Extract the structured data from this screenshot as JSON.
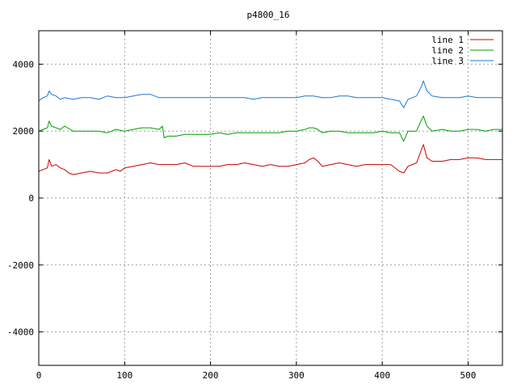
{
  "chart_data": {
    "type": "line",
    "title": "p4800_16",
    "xlabel": "",
    "ylabel": "",
    "xlim": [
      0,
      540
    ],
    "ylim": [
      -5000,
      5000
    ],
    "x_ticks": [
      0,
      100,
      200,
      300,
      400,
      500
    ],
    "y_ticks": [
      -4000,
      -2000,
      0,
      2000,
      4000
    ],
    "grid": true,
    "legend_position": "top-right",
    "series": [
      {
        "name": "line 1",
        "color": "#cc0000",
        "x": [
          0,
          5,
          10,
          12,
          15,
          20,
          25,
          30,
          35,
          40,
          50,
          60,
          70,
          80,
          90,
          95,
          100,
          110,
          120,
          130,
          140,
          150,
          160,
          170,
          180,
          190,
          200,
          210,
          220,
          230,
          240,
          250,
          260,
          270,
          280,
          290,
          300,
          310,
          315,
          320,
          325,
          330,
          340,
          350,
          360,
          370,
          380,
          390,
          400,
          410,
          420,
          425,
          430,
          440,
          445,
          448,
          452,
          458,
          470,
          480,
          490,
          500,
          510,
          520,
          530,
          540
        ],
        "y": [
          800,
          850,
          900,
          1150,
          950,
          1000,
          900,
          850,
          750,
          700,
          750,
          800,
          750,
          750,
          850,
          800,
          900,
          950,
          1000,
          1050,
          1000,
          1000,
          1000,
          1050,
          950,
          950,
          950,
          950,
          1000,
          1000,
          1050,
          1000,
          950,
          1000,
          950,
          950,
          1000,
          1050,
          1150,
          1200,
          1100,
          950,
          1000,
          1050,
          1000,
          950,
          1000,
          1000,
          1000,
          1000,
          800,
          750,
          950,
          1050,
          1400,
          1600,
          1200,
          1100,
          1100,
          1150,
          1150,
          1200,
          1200,
          1150,
          1150,
          1150
        ]
      },
      {
        "name": "line 2",
        "color": "#00a000",
        "x": [
          0,
          5,
          10,
          12,
          15,
          20,
          25,
          30,
          40,
          50,
          60,
          70,
          80,
          90,
          100,
          110,
          120,
          130,
          140,
          144,
          146,
          150,
          160,
          170,
          180,
          190,
          200,
          210,
          220,
          230,
          240,
          250,
          260,
          270,
          280,
          290,
          300,
          310,
          315,
          320,
          325,
          330,
          340,
          350,
          360,
          370,
          380,
          390,
          400,
          410,
          420,
          425,
          430,
          440,
          445,
          448,
          452,
          458,
          470,
          480,
          490,
          500,
          510,
          520,
          530,
          540
        ],
        "y": [
          2000,
          2050,
          2100,
          2300,
          2150,
          2100,
          2050,
          2150,
          2000,
          2000,
          2000,
          2000,
          1950,
          2050,
          2000,
          2050,
          2100,
          2100,
          2050,
          2150,
          1800,
          1850,
          1850,
          1900,
          1900,
          1900,
          1900,
          1950,
          1900,
          1950,
          1950,
          1950,
          1950,
          1950,
          1950,
          2000,
          2000,
          2050,
          2100,
          2100,
          2050,
          1950,
          2000,
          2000,
          1950,
          1950,
          1950,
          1950,
          2000,
          1950,
          1950,
          1700,
          2000,
          2000,
          2300,
          2450,
          2150,
          2000,
          2050,
          2000,
          2000,
          2050,
          2050,
          2000,
          2050,
          2050
        ]
      },
      {
        "name": "line 3",
        "color": "#1f77d0",
        "x": [
          0,
          5,
          10,
          12,
          15,
          20,
          25,
          30,
          40,
          50,
          60,
          70,
          80,
          90,
          100,
          110,
          120,
          130,
          140,
          150,
          160,
          170,
          180,
          190,
          200,
          210,
          220,
          230,
          240,
          250,
          260,
          270,
          280,
          290,
          300,
          310,
          320,
          330,
          340,
          350,
          360,
          370,
          380,
          390,
          400,
          410,
          420,
          425,
          430,
          440,
          445,
          448,
          452,
          458,
          470,
          480,
          490,
          500,
          510,
          520,
          530,
          540
        ],
        "y": [
          2900,
          3000,
          3050,
          3200,
          3100,
          3050,
          2950,
          3000,
          2950,
          3000,
          3000,
          2950,
          3050,
          3000,
          3000,
          3050,
          3100,
          3100,
          3000,
          3000,
          3000,
          3000,
          3000,
          3000,
          3000,
          3000,
          3000,
          3000,
          3000,
          2950,
          3000,
          3000,
          3000,
          3000,
          3000,
          3050,
          3050,
          3000,
          3000,
          3050,
          3050,
          3000,
          3000,
          3000,
          3000,
          2950,
          2900,
          2700,
          2950,
          3050,
          3300,
          3500,
          3200,
          3050,
          3000,
          3000,
          3000,
          3050,
          3000,
          3000,
          3000,
          3000
        ]
      }
    ]
  }
}
